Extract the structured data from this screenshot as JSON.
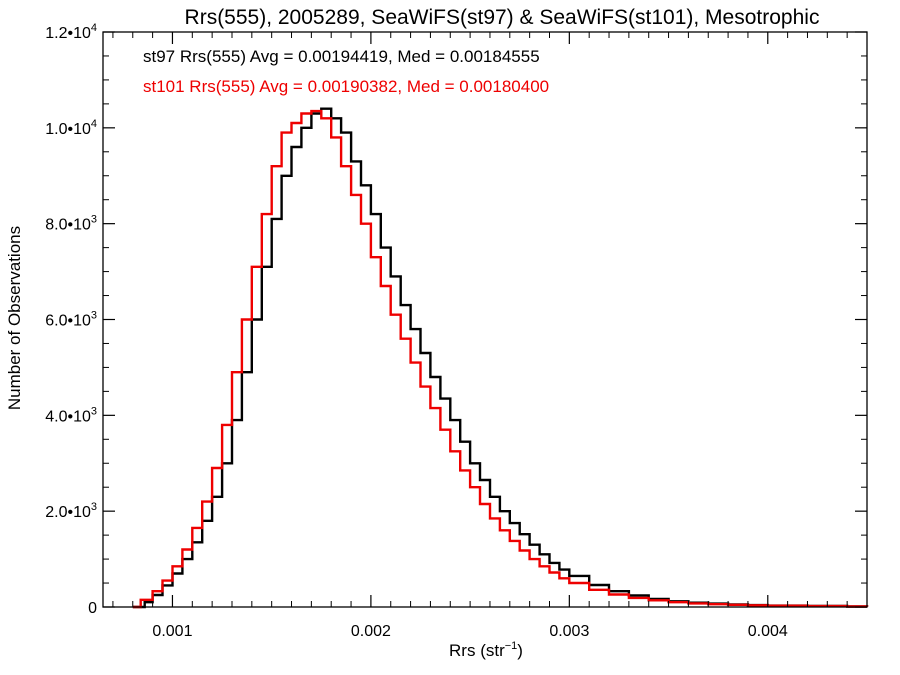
{
  "chart_data": {
    "type": "line",
    "title": "Rrs(555), 2005289, SeaWiFS(st97) & SeaWiFS(st101), Mesotrophic",
    "xlabel": "Rrs (str⁻¹)",
    "ylabel": "Number of Observations",
    "xlim": [
      0.00065,
      0.0045
    ],
    "ylim": [
      0,
      12000
    ],
    "x_ticks": [
      0.001,
      0.002,
      0.003,
      0.004
    ],
    "x_tick_labels": [
      "0.001",
      "0.002",
      "0.003",
      "0.004"
    ],
    "y_ticks": [
      0,
      2000,
      4000,
      6000,
      8000,
      10000,
      12000
    ],
    "y_tick_labels": [
      "0",
      "2.0•10³",
      "4.0•10³",
      "6.0•10³",
      "8.0•10³",
      "1.0•10⁴",
      "1.2•10⁴"
    ],
    "grid": false,
    "legend_position": "top-left",
    "series": [
      {
        "name": "st97",
        "color": "#000000",
        "annotation": "st97 Rrs(555) Avg = 0.00194419, Med = 0.00184555",
        "points": [
          [
            0.0008,
            0
          ],
          [
            0.00084,
            0
          ],
          [
            0.00086,
            100
          ],
          [
            0.0009,
            250
          ],
          [
            0.00095,
            450
          ],
          [
            0.001,
            700
          ],
          [
            0.00105,
            1000
          ],
          [
            0.0011,
            1350
          ],
          [
            0.00115,
            1800
          ],
          [
            0.0012,
            2300
          ],
          [
            0.00125,
            3000
          ],
          [
            0.0013,
            3900
          ],
          [
            0.00135,
            4900
          ],
          [
            0.0014,
            6000
          ],
          [
            0.00145,
            7100
          ],
          [
            0.0015,
            8100
          ],
          [
            0.00155,
            9000
          ],
          [
            0.0016,
            9600
          ],
          [
            0.00165,
            10000
          ],
          [
            0.0017,
            10300
          ],
          [
            0.00175,
            10400
          ],
          [
            0.0018,
            10200
          ],
          [
            0.00185,
            9900
          ],
          [
            0.0019,
            9300
          ],
          [
            0.00195,
            8800
          ],
          [
            0.002,
            8200
          ],
          [
            0.00205,
            7500
          ],
          [
            0.0021,
            6900
          ],
          [
            0.00215,
            6300
          ],
          [
            0.0022,
            5800
          ],
          [
            0.00225,
            5300
          ],
          [
            0.0023,
            4800
          ],
          [
            0.00235,
            4350
          ],
          [
            0.0024,
            3900
          ],
          [
            0.00245,
            3450
          ],
          [
            0.0025,
            3000
          ],
          [
            0.00255,
            2650
          ],
          [
            0.0026,
            2300
          ],
          [
            0.00265,
            2000
          ],
          [
            0.0027,
            1750
          ],
          [
            0.00275,
            1520
          ],
          [
            0.0028,
            1300
          ],
          [
            0.00285,
            1100
          ],
          [
            0.0029,
            920
          ],
          [
            0.00295,
            780
          ],
          [
            0.003,
            650
          ],
          [
            0.0031,
            460
          ],
          [
            0.0032,
            330
          ],
          [
            0.0033,
            240
          ],
          [
            0.0034,
            170
          ],
          [
            0.0035,
            120
          ],
          [
            0.0036,
            90
          ],
          [
            0.0037,
            70
          ],
          [
            0.0038,
            55
          ],
          [
            0.0039,
            40
          ],
          [
            0.004,
            30
          ],
          [
            0.0042,
            20
          ],
          [
            0.0044,
            10
          ],
          [
            0.0045,
            8
          ]
        ]
      },
      {
        "name": "st101",
        "color": "#ee0000",
        "annotation": "st101 Rrs(555) Avg = 0.00190382, Med = 0.00180400",
        "points": [
          [
            0.0008,
            0
          ],
          [
            0.00082,
            0
          ],
          [
            0.00084,
            150
          ],
          [
            0.0009,
            330
          ],
          [
            0.00095,
            550
          ],
          [
            0.001,
            850
          ],
          [
            0.00105,
            1200
          ],
          [
            0.0011,
            1650
          ],
          [
            0.00115,
            2200
          ],
          [
            0.0012,
            2900
          ],
          [
            0.00125,
            3800
          ],
          [
            0.0013,
            4900
          ],
          [
            0.00135,
            6000
          ],
          [
            0.0014,
            7100
          ],
          [
            0.00145,
            8200
          ],
          [
            0.0015,
            9200
          ],
          [
            0.00155,
            9900
          ],
          [
            0.0016,
            10100
          ],
          [
            0.00165,
            10300
          ],
          [
            0.0017,
            10350
          ],
          [
            0.00175,
            10200
          ],
          [
            0.0018,
            9800
          ],
          [
            0.00185,
            9200
          ],
          [
            0.0019,
            8600
          ],
          [
            0.00195,
            8000
          ],
          [
            0.002,
            7300
          ],
          [
            0.00205,
            6700
          ],
          [
            0.0021,
            6100
          ],
          [
            0.00215,
            5600
          ],
          [
            0.0022,
            5100
          ],
          [
            0.00225,
            4600
          ],
          [
            0.0023,
            4150
          ],
          [
            0.00235,
            3700
          ],
          [
            0.0024,
            3250
          ],
          [
            0.00245,
            2850
          ],
          [
            0.0025,
            2500
          ],
          [
            0.00255,
            2150
          ],
          [
            0.0026,
            1850
          ],
          [
            0.00265,
            1600
          ],
          [
            0.0027,
            1380
          ],
          [
            0.00275,
            1180
          ],
          [
            0.0028,
            1000
          ],
          [
            0.00285,
            850
          ],
          [
            0.0029,
            720
          ],
          [
            0.00295,
            600
          ],
          [
            0.003,
            500
          ],
          [
            0.0031,
            360
          ],
          [
            0.0032,
            260
          ],
          [
            0.0033,
            190
          ],
          [
            0.0034,
            140
          ],
          [
            0.0035,
            100
          ],
          [
            0.0036,
            75
          ],
          [
            0.0037,
            58
          ],
          [
            0.0038,
            45
          ],
          [
            0.0039,
            35
          ],
          [
            0.004,
            27
          ],
          [
            0.0042,
            18
          ],
          [
            0.0044,
            10
          ],
          [
            0.0045,
            7
          ]
        ]
      }
    ]
  }
}
